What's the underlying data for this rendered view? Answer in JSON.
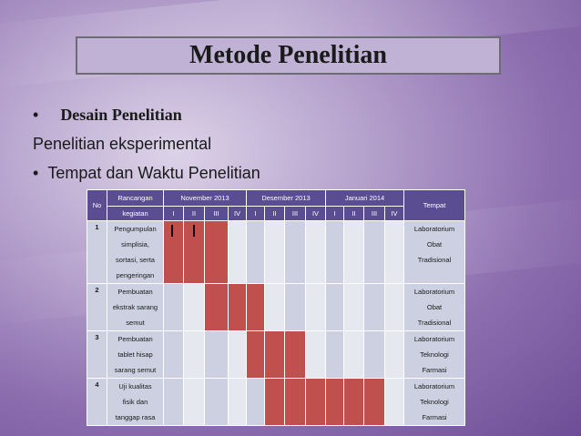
{
  "title": "Metode Penelitian",
  "bullets": {
    "b1": "Desain Penelitian",
    "b1_dot": "•",
    "l2": "Penelitian eksperimental",
    "l3": "Tempat dan Waktu Penelitian",
    "l3_dot": "•"
  },
  "table": {
    "h_no": "No",
    "h_rancangan_1": "Rancangan",
    "h_rancangan_2": "kegiatan",
    "months": [
      "November 2013",
      "Desember 2013",
      "Januari 2014"
    ],
    "h_tempat": "Tempat",
    "weeks": [
      "I",
      "II",
      "III",
      "IV",
      "I",
      "II",
      "III",
      "IV",
      "I",
      "II",
      "III",
      "IV"
    ],
    "rows": [
      {
        "no": "1",
        "act": [
          "Pengumpulan",
          "simplisia,",
          "sortasi, serta",
          "pengeringan"
        ],
        "place": [
          "Laboratorium",
          "Obat",
          "Tradisional",
          ""
        ],
        "active": [
          0,
          1,
          2
        ]
      },
      {
        "no": "2",
        "act": [
          "Pembuatan",
          "ekstrak sarang",
          "semut"
        ],
        "place": [
          "Laboratorium",
          "Obat",
          "Tradisional"
        ],
        "active": [
          2,
          3,
          4
        ]
      },
      {
        "no": "3",
        "act": [
          "Pembuatan",
          "tablet hisap",
          "sarang semut"
        ],
        "place": [
          "Laboratorium",
          "Teknologi",
          "Farmasi"
        ],
        "active": [
          4,
          5,
          6
        ]
      },
      {
        "no": "4",
        "act": [
          "Uji kualitas",
          "fisik dan",
          "tanggap rasa"
        ],
        "place": [
          "Laboratorium",
          "Teknologi",
          "Farmasi"
        ],
        "active": [
          5,
          6,
          7,
          8,
          9,
          10
        ]
      }
    ]
  },
  "colors": {
    "header": "#5b4d92",
    "active": "#c0504d",
    "cell": "#ccd0e0"
  }
}
